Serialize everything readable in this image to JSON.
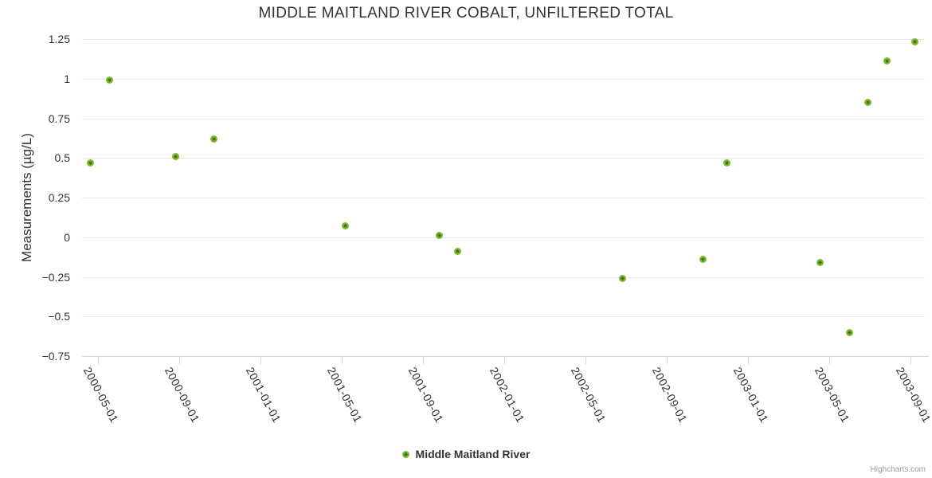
{
  "header": {
    "title": "MIDDLE MAITLAND RIVER COBALT, UNFILTERED TOTAL"
  },
  "chart_data": {
    "type": "scatter",
    "title": "MIDDLE MAITLAND RIVER COBALT, UNFILTERED TOTAL",
    "xlabel": "",
    "ylabel": "Measurements (µg/L)",
    "ylim": [
      -0.75,
      1.25
    ],
    "y_ticks": [
      1.25,
      1,
      0.75,
      0.5,
      0.25,
      0,
      -0.25,
      -0.5,
      -0.75
    ],
    "x_ticks": [
      "2000-05-01",
      "2000-09-01",
      "2001-01-01",
      "2001-05-01",
      "2001-09-01",
      "2002-01-01",
      "2002-05-01",
      "2002-09-01",
      "2003-01-01",
      "2003-05-01",
      "2003-09-01"
    ],
    "grid": "horizontal-only",
    "legend_position": "bottom-center",
    "series": [
      {
        "name": "Middle Maitland River",
        "color": "#7cb82e",
        "marker_core_color": "#46730d",
        "points": [
          {
            "date": "2000-04-20",
            "value": 0.47
          },
          {
            "date": "2000-05-18",
            "value": 0.99
          },
          {
            "date": "2000-08-26",
            "value": 0.51
          },
          {
            "date": "2000-10-23",
            "value": 0.62
          },
          {
            "date": "2001-05-06",
            "value": 0.07
          },
          {
            "date": "2001-09-26",
            "value": 0.01
          },
          {
            "date": "2001-10-22",
            "value": -0.09
          },
          {
            "date": "2002-06-26",
            "value": -0.26
          },
          {
            "date": "2002-10-25",
            "value": -0.14
          },
          {
            "date": "2002-11-30",
            "value": 0.47
          },
          {
            "date": "2003-04-18",
            "value": -0.16
          },
          {
            "date": "2003-06-01",
            "value": -0.6
          },
          {
            "date": "2003-06-29",
            "value": 0.85
          },
          {
            "date": "2003-07-27",
            "value": 1.11
          },
          {
            "date": "2003-09-08",
            "value": 1.23
          }
        ]
      }
    ]
  },
  "legend": {
    "items": [
      {
        "label": "Middle Maitland River",
        "color": "#7cb82e"
      }
    ]
  },
  "credits": {
    "label": "Highcharts.com"
  },
  "colors": {
    "title_text": "#333333",
    "axis_label_text": "#333333",
    "grid_line": "#e6e6e6",
    "axis_line": "#ccd6eb",
    "credits_text": "#999999",
    "series_marker_ring": "#7cb82e",
    "series_marker_core": "#46730d",
    "background": "#ffffff"
  }
}
